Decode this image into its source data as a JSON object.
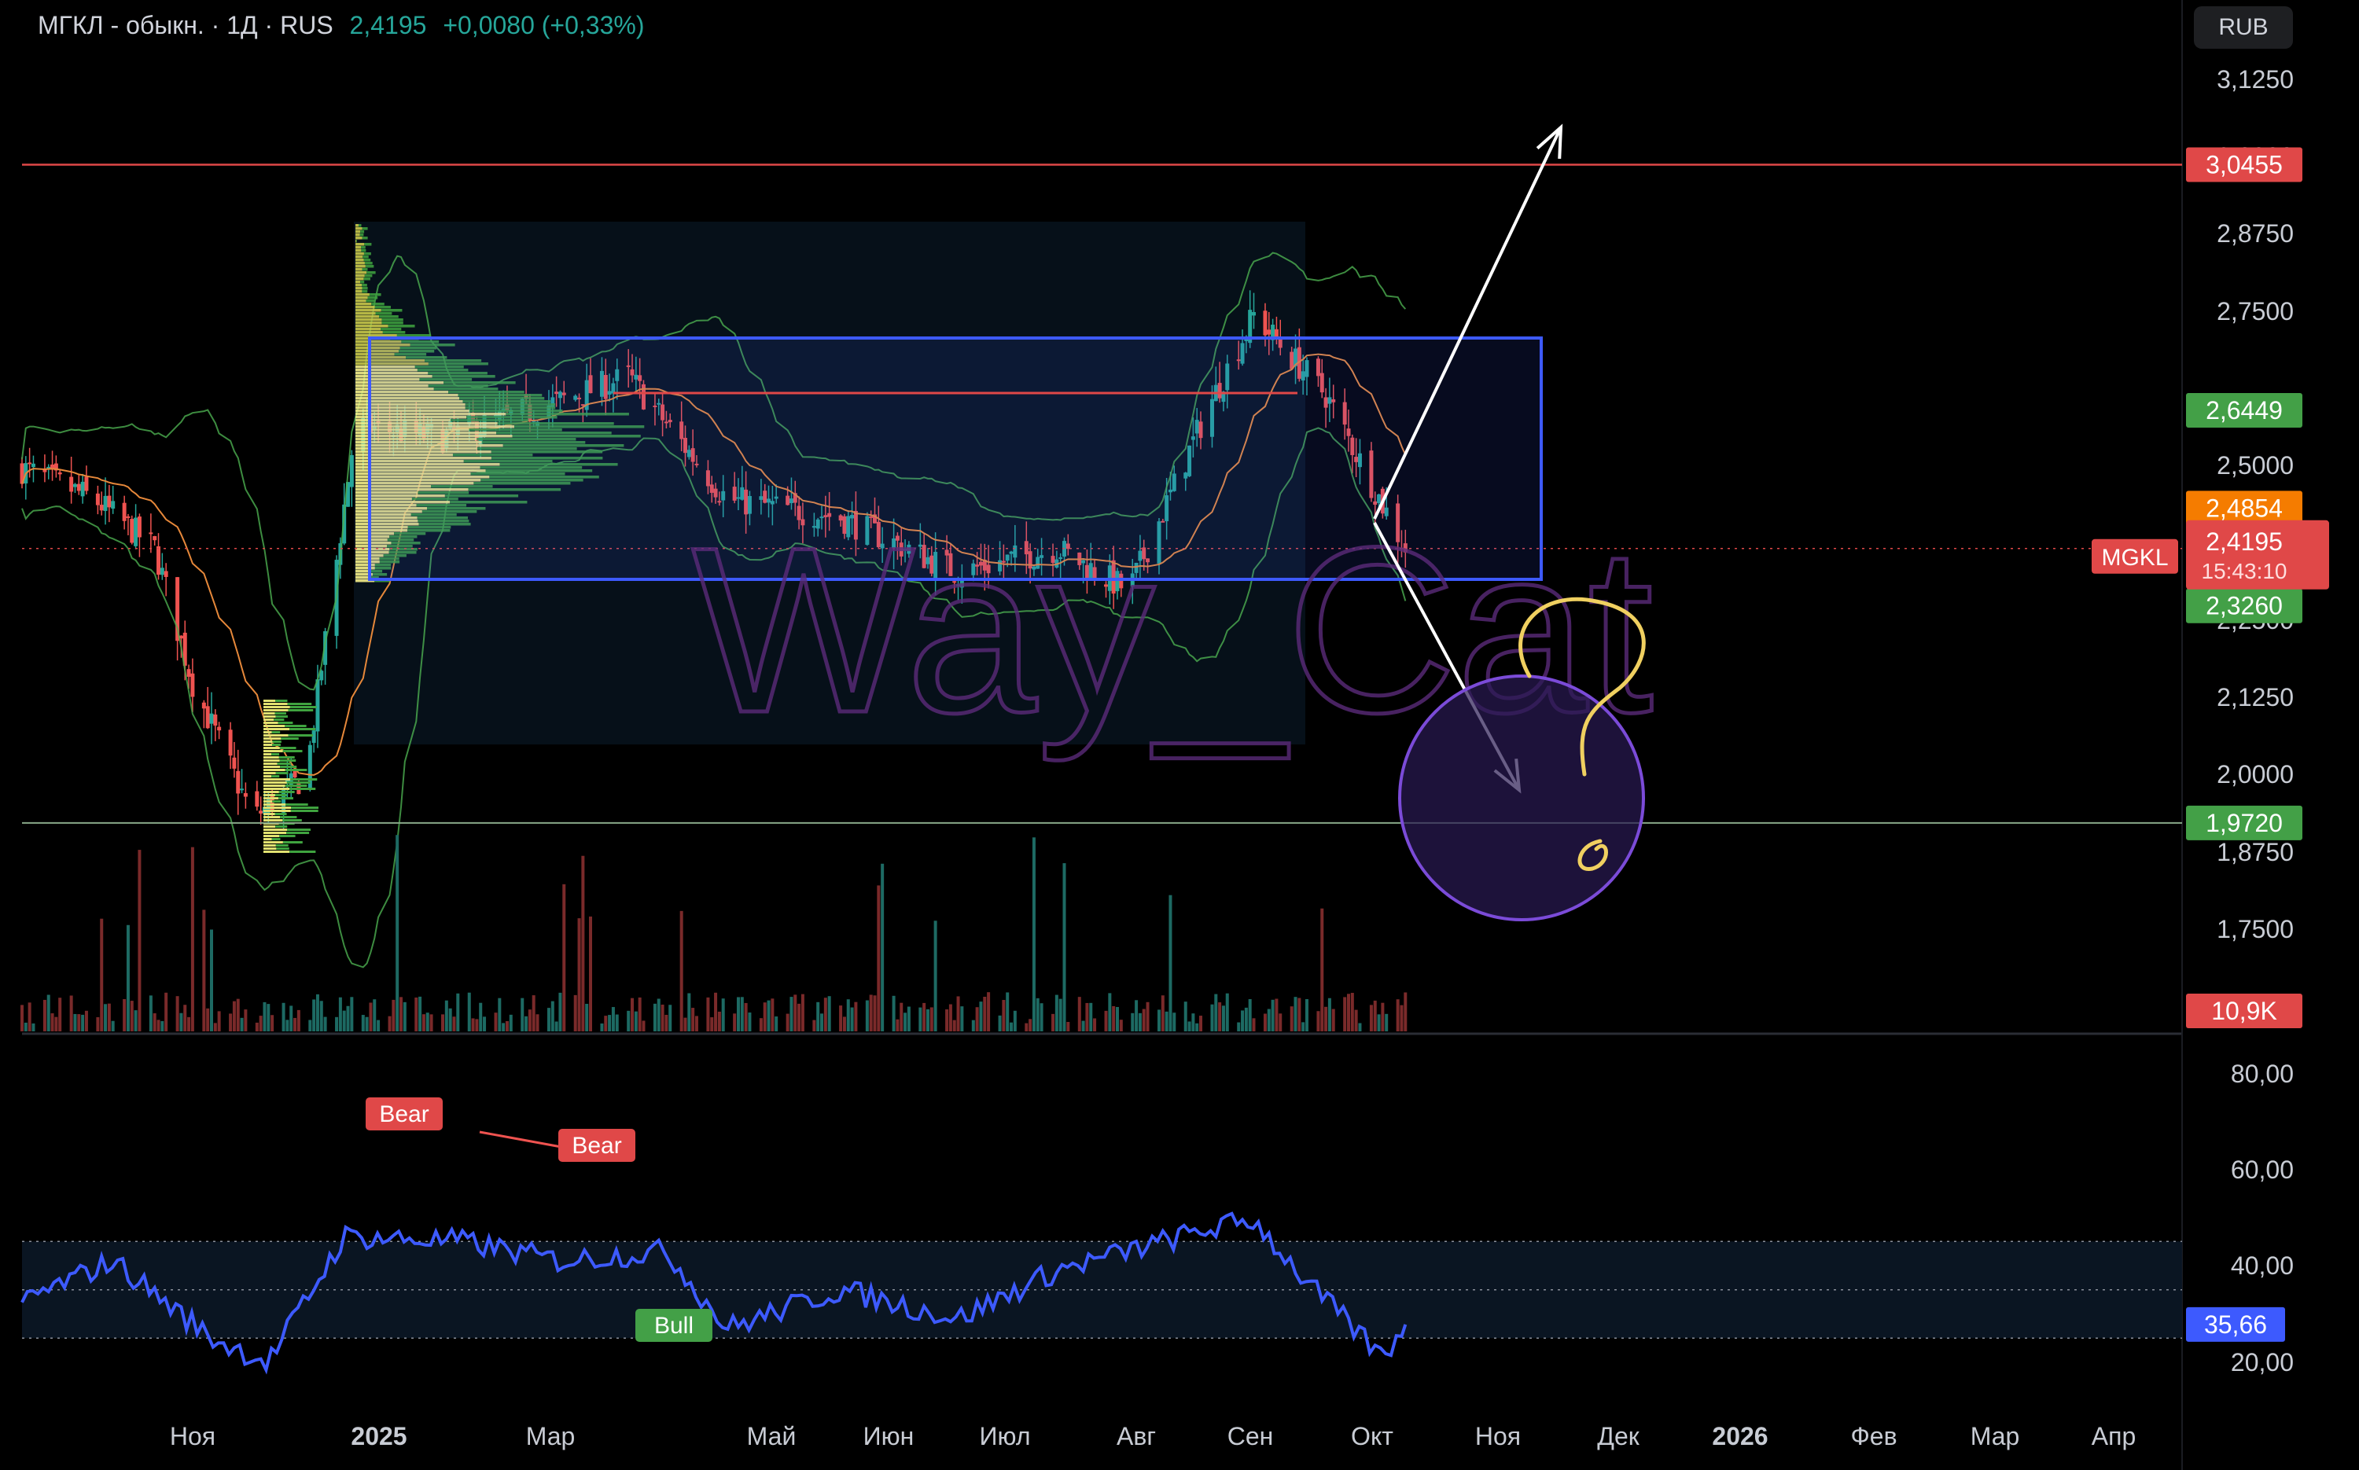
{
  "header": {
    "symbol": "МГКЛ - обыкн. · 1Д · RUS",
    "price": "2,4195",
    "change": "+0,0080 (+0,33%)"
  },
  "currency_button": "RUB",
  "colors": {
    "background": "#000000",
    "up": "#26a69a",
    "down": "#ef5350",
    "rsi_line": "#3d5afe",
    "box": "#3d5afe",
    "resistance": "#e04848",
    "support": "#88a888",
    "circle": "#7b4bd8",
    "watermark": "#5b2b7a",
    "bb": "#4caf50",
    "ma": "#e6883a"
  },
  "watermark": "Way_Cat",
  "price_axis": {
    "ticks": [
      "3,1250",
      "3,0000",
      "2,8750",
      "2,7500",
      "2,5000",
      "2,3750",
      "2,2500",
      "2,1250",
      "2,0000",
      "1,8750",
      "1,7500"
    ],
    "labels": [
      {
        "text": "3,0455",
        "color": "#e04848",
        "value": 3.0455
      },
      {
        "text": "2,6449",
        "color": "#43a047",
        "value": 2.6449
      },
      {
        "text": "2,4854",
        "color": "#f57c00",
        "value": 2.4854
      },
      {
        "text": "2,3260",
        "color": "#43a047",
        "value": 2.326
      },
      {
        "text": "1,9720",
        "color": "#43a047",
        "value": 1.972
      }
    ],
    "current": {
      "symbol": "MGKL",
      "price": "2,4195",
      "timer": "15:43:10",
      "value": 2.4195
    },
    "volume_label": "10,9K"
  },
  "rsi_axis": {
    "ticks": [
      "80,00",
      "60,00",
      "40,00",
      "20,00"
    ],
    "current": "35,66",
    "current_value": 35.66,
    "signals": [
      {
        "text": "Bear",
        "type": "bear"
      },
      {
        "text": "Bear",
        "type": "bear"
      },
      {
        "text": "Bull",
        "type": "bull"
      }
    ]
  },
  "time_axis": {
    "labels": [
      "Ноя",
      "2025",
      "Мар",
      "Май",
      "Июн",
      "Июл",
      "Авг",
      "Сен",
      "Окт",
      "Ноя",
      "Дек",
      "2026",
      "Фев",
      "Мар",
      "Апр"
    ],
    "bold": [
      "2025",
      "2026"
    ]
  },
  "chart_data": {
    "type": "line",
    "series_keypoints": [
      {
        "date": "2024-10-01",
        "close": 2.55
      },
      {
        "date": "2024-10-20",
        "close": 2.5
      },
      {
        "date": "2024-11-05",
        "close": 2.42
      },
      {
        "date": "2024-11-15",
        "close": 2.2
      },
      {
        "date": "2024-12-01",
        "close": 1.98
      },
      {
        "date": "2024-12-15",
        "close": 2.05
      },
      {
        "date": "2024-12-28",
        "close": 2.62
      },
      {
        "date": "2025-01-20",
        "close": 2.6
      },
      {
        "date": "2025-02-20",
        "close": 2.66
      },
      {
        "date": "2025-03-10",
        "close": 2.7
      },
      {
        "date": "2025-04-05",
        "close": 2.5
      },
      {
        "date": "2025-05-05",
        "close": 2.47
      },
      {
        "date": "2025-06-05",
        "close": 2.38
      },
      {
        "date": "2025-07-01",
        "close": 2.42
      },
      {
        "date": "2025-07-20",
        "close": 2.35
      },
      {
        "date": "2025-08-10",
        "close": 2.65
      },
      {
        "date": "2025-08-22",
        "close": 2.8
      },
      {
        "date": "2025-09-10",
        "close": 2.67
      },
      {
        "date": "2025-10-01",
        "close": 2.4195
      }
    ],
    "rsi_keypoints": [
      {
        "date": "2024-10-01",
        "rsi": 45
      },
      {
        "date": "2024-10-25",
        "rsi": 62
      },
      {
        "date": "2024-11-20",
        "rsi": 30
      },
      {
        "date": "2024-12-05",
        "rsi": 20
      },
      {
        "date": "2024-12-25",
        "rsi": 72
      },
      {
        "date": "2025-01-25",
        "rsi": 70
      },
      {
        "date": "2025-02-20",
        "rsi": 62
      },
      {
        "date": "2025-03-20",
        "rsi": 66
      },
      {
        "date": "2025-04-05",
        "rsi": 34
      },
      {
        "date": "2025-05-05",
        "rsi": 50
      },
      {
        "date": "2025-06-05",
        "rsi": 38
      },
      {
        "date": "2025-07-01",
        "rsi": 58
      },
      {
        "date": "2025-08-10",
        "rsi": 75
      },
      {
        "date": "2025-08-22",
        "rsi": 79
      },
      {
        "date": "2025-09-05",
        "rsi": 53
      },
      {
        "date": "2025-09-25",
        "rsi": 22
      },
      {
        "date": "2025-10-01",
        "rsi": 35.66
      }
    ],
    "ylim": [
      1.68,
      3.16
    ],
    "rsi_ylim": [
      12,
      86
    ]
  }
}
